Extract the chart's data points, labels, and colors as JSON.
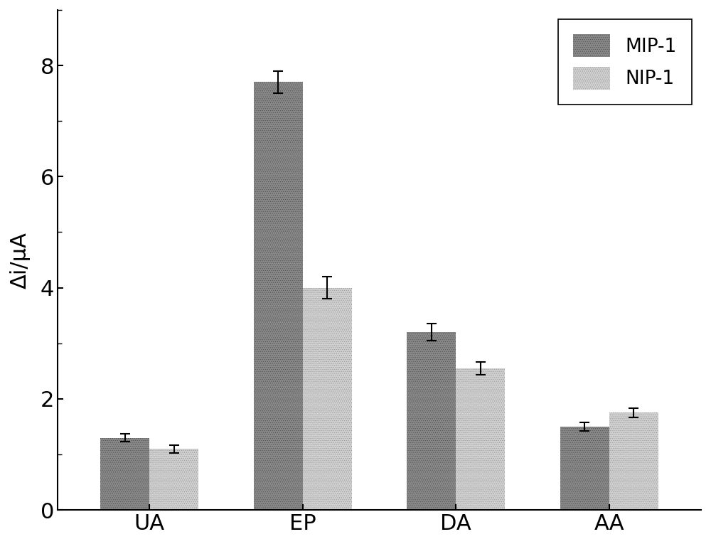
{
  "categories": [
    "UA",
    "EP",
    "DA",
    "AA"
  ],
  "mip_values": [
    1.3,
    7.7,
    3.2,
    1.5
  ],
  "nip_values": [
    1.1,
    4.0,
    2.55,
    1.75
  ],
  "mip_errors": [
    0.07,
    0.2,
    0.15,
    0.08
  ],
  "nip_errors": [
    0.07,
    0.2,
    0.12,
    0.08
  ],
  "mip_color": "#888888",
  "nip_color": "#d0d0d0",
  "mip_hatch_color": "#555555",
  "nip_hatch_color": "#999999",
  "ylabel": "Δi/μA",
  "ylim": [
    0,
    9
  ],
  "yticks": [
    0,
    2,
    4,
    6,
    8
  ],
  "legend_labels": [
    "MIP-1",
    "NIP-1"
  ],
  "bar_width": 0.32,
  "title": "",
  "background_color": "#ffffff",
  "figsize": [
    10.0,
    7.65
  ],
  "dpi": 100,
  "tick_fontsize": 22,
  "label_fontsize": 22,
  "legend_fontsize": 19
}
